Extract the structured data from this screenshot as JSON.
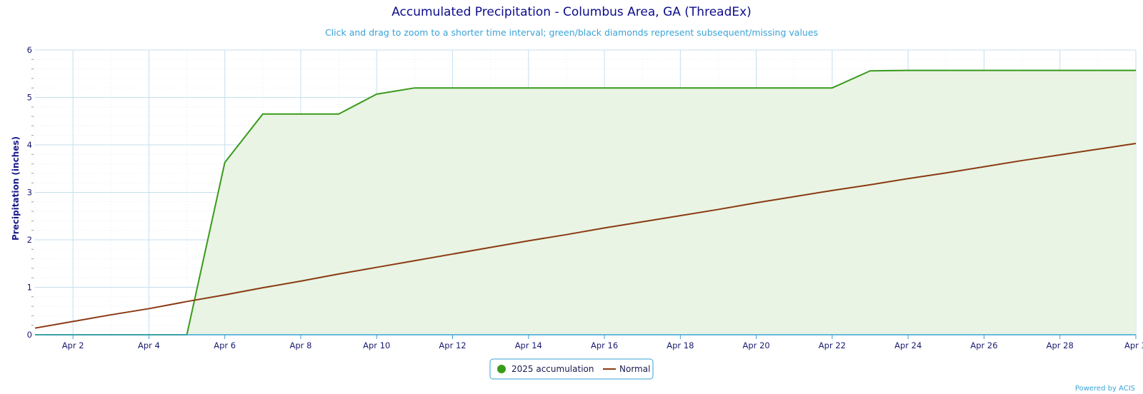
{
  "chart_data": {
    "type": "area",
    "title": "Accumulated Precipitation - Columbus Area, GA (ThreadEx)",
    "subtitle": "Click and drag to zoom to a shorter time interval; green/black diamonds represent subsequent/missing values",
    "ylabel": "Precipitation (inches)",
    "xlabel": "",
    "ylim": [
      0,
      6
    ],
    "xlim": [
      1,
      30
    ],
    "y_ticks": [
      0,
      1,
      2,
      3,
      4,
      5,
      6
    ],
    "x_ticks": [
      {
        "day": 2,
        "label": "Apr 2"
      },
      {
        "day": 4,
        "label": "Apr 4"
      },
      {
        "day": 6,
        "label": "Apr 6"
      },
      {
        "day": 8,
        "label": "Apr 8"
      },
      {
        "day": 10,
        "label": "Apr 10"
      },
      {
        "day": 12,
        "label": "Apr 12"
      },
      {
        "day": 14,
        "label": "Apr 14"
      },
      {
        "day": 16,
        "label": "Apr 16"
      },
      {
        "day": 18,
        "label": "Apr 18"
      },
      {
        "day": 20,
        "label": "Apr 20"
      },
      {
        "day": 22,
        "label": "Apr 22"
      },
      {
        "day": 24,
        "label": "Apr 24"
      },
      {
        "day": 26,
        "label": "Apr 26"
      },
      {
        "day": 28,
        "label": "Apr 28"
      },
      {
        "day": 30,
        "label": "Apr 3"
      }
    ],
    "grid": true,
    "legend_position": "bottom-center",
    "series": [
      {
        "name": "2025 accumulation",
        "color": "#3a9a1c",
        "fill": "#e9f4e4",
        "x": [
          1,
          2,
          3,
          4,
          5,
          6,
          7,
          8,
          9,
          10,
          11,
          12,
          13,
          14,
          15,
          16,
          17,
          18,
          19,
          20,
          21,
          22,
          23,
          24,
          25,
          26,
          27,
          28,
          29,
          30
        ],
        "y": [
          0.0,
          0.0,
          0.0,
          0.0,
          0.0,
          3.63,
          4.65,
          4.65,
          4.65,
          5.07,
          5.2,
          5.2,
          5.2,
          5.2,
          5.2,
          5.2,
          5.2,
          5.2,
          5.2,
          5.2,
          5.2,
          5.2,
          5.56,
          5.57,
          5.57,
          5.57,
          5.57,
          5.57,
          5.57,
          5.57
        ]
      },
      {
        "name": "Normal",
        "color": "#8b3a12",
        "x": [
          1,
          2,
          3,
          4,
          5,
          6,
          7,
          8,
          9,
          10,
          11,
          12,
          13,
          14,
          15,
          16,
          17,
          18,
          19,
          20,
          21,
          22,
          23,
          24,
          25,
          26,
          27,
          28,
          29,
          30
        ],
        "y": [
          0.14,
          0.28,
          0.42,
          0.55,
          0.7,
          0.84,
          0.99,
          1.13,
          1.28,
          1.42,
          1.56,
          1.7,
          1.84,
          1.98,
          2.11,
          2.25,
          2.38,
          2.51,
          2.64,
          2.78,
          2.91,
          3.04,
          3.16,
          3.29,
          3.41,
          3.54,
          3.67,
          3.79,
          3.91,
          4.03
        ]
      }
    ]
  },
  "credit": "Powered by ACIS",
  "colors": {
    "title": "#0c0c8c",
    "subtitle": "#3aa3d6",
    "grid": "#c5dfee",
    "axis": "#3aa3d6"
  }
}
